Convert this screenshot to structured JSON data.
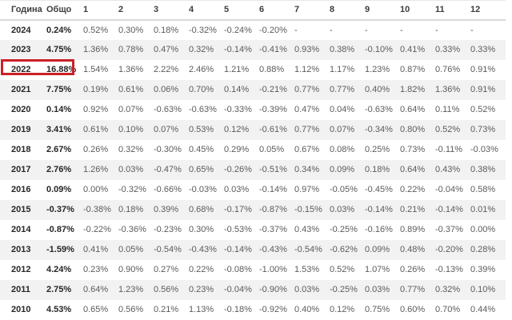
{
  "chart_data": {
    "type": "table",
    "title": "",
    "header": {
      "year_label": "Година",
      "total_label": "Общо",
      "month_labels": [
        "1",
        "2",
        "3",
        "4",
        "5",
        "6",
        "7",
        "8",
        "9",
        "10",
        "11",
        "12"
      ]
    },
    "rows": [
      {
        "year": "2024",
        "total": "0.24%",
        "months": [
          "0.52%",
          "0.30%",
          "0.18%",
          "-0.32%",
          "-0.24%",
          "-0.20%",
          "-",
          "-",
          "-",
          "-",
          "-",
          "-"
        ]
      },
      {
        "year": "2023",
        "total": "4.75%",
        "months": [
          "1.36%",
          "0.78%",
          "0.47%",
          "0.32%",
          "-0.14%",
          "-0.41%",
          "0.93%",
          "0.38%",
          "-0.10%",
          "0.41%",
          "0.33%",
          "0.33%"
        ]
      },
      {
        "year": "2022",
        "total": "16.88%",
        "months": [
          "1.54%",
          "1.36%",
          "2.22%",
          "2.46%",
          "1.21%",
          "0.88%",
          "1.12%",
          "1.17%",
          "1.23%",
          "0.87%",
          "0.76%",
          "0.91%"
        ]
      },
      {
        "year": "2021",
        "total": "7.75%",
        "months": [
          "0.19%",
          "0.61%",
          "0.06%",
          "0.70%",
          "0.14%",
          "-0.21%",
          "0.77%",
          "0.77%",
          "0.40%",
          "1.82%",
          "1.36%",
          "0.91%"
        ]
      },
      {
        "year": "2020",
        "total": "0.14%",
        "months": [
          "0.92%",
          "0.07%",
          "-0.63%",
          "-0.63%",
          "-0.33%",
          "-0.39%",
          "0.47%",
          "0.04%",
          "-0.63%",
          "0.64%",
          "0.11%",
          "0.52%"
        ]
      },
      {
        "year": "2019",
        "total": "3.41%",
        "months": [
          "0.61%",
          "0.10%",
          "0.07%",
          "0.53%",
          "0.12%",
          "-0.61%",
          "0.77%",
          "0.07%",
          "-0.34%",
          "0.80%",
          "0.52%",
          "0.73%"
        ]
      },
      {
        "year": "2018",
        "total": "2.67%",
        "months": [
          "0.26%",
          "0.32%",
          "-0.30%",
          "0.45%",
          "0.29%",
          "0.05%",
          "0.67%",
          "0.08%",
          "0.25%",
          "0.73%",
          "-0.11%",
          "-0.03%"
        ]
      },
      {
        "year": "2017",
        "total": "2.76%",
        "months": [
          "1.26%",
          "0.03%",
          "-0.47%",
          "0.65%",
          "-0.26%",
          "-0.51%",
          "0.34%",
          "0.09%",
          "0.18%",
          "0.64%",
          "0.43%",
          "0.38%"
        ]
      },
      {
        "year": "2016",
        "total": "0.09%",
        "months": [
          "0.00%",
          "-0.32%",
          "-0.66%",
          "-0.03%",
          "0.03%",
          "-0.14%",
          "0.97%",
          "-0.05%",
          "-0.45%",
          "0.22%",
          "-0.04%",
          "0.58%"
        ]
      },
      {
        "year": "2015",
        "total": "-0.37%",
        "months": [
          "-0.38%",
          "0.18%",
          "0.39%",
          "0.68%",
          "-0.17%",
          "-0.87%",
          "-0.15%",
          "0.03%",
          "-0.14%",
          "0.21%",
          "-0.14%",
          "0.01%"
        ]
      },
      {
        "year": "2014",
        "total": "-0.87%",
        "months": [
          "-0.22%",
          "-0.36%",
          "-0.23%",
          "0.30%",
          "-0.53%",
          "-0.37%",
          "0.43%",
          "-0.25%",
          "-0.16%",
          "0.89%",
          "-0.37%",
          "0.00%"
        ]
      },
      {
        "year": "2013",
        "total": "-1.59%",
        "months": [
          "0.41%",
          "0.05%",
          "-0.54%",
          "-0.43%",
          "-0.14%",
          "-0.43%",
          "-0.54%",
          "-0.62%",
          "0.09%",
          "0.48%",
          "-0.20%",
          "0.28%"
        ]
      },
      {
        "year": "2012",
        "total": "4.24%",
        "months": [
          "0.23%",
          "0.90%",
          "0.27%",
          "0.22%",
          "-0.08%",
          "-1.00%",
          "1.53%",
          "0.52%",
          "1.07%",
          "0.26%",
          "-0.13%",
          "0.39%"
        ]
      },
      {
        "year": "2011",
        "total": "2.75%",
        "months": [
          "0.64%",
          "1.23%",
          "0.56%",
          "0.23%",
          "-0.04%",
          "-0.90%",
          "0.03%",
          "-0.25%",
          "0.03%",
          "0.77%",
          "0.32%",
          "0.10%"
        ]
      },
      {
        "year": "2010",
        "total": "4.53%",
        "months": [
          "0.65%",
          "0.56%",
          "0.21%",
          "1.13%",
          "-0.18%",
          "-0.92%",
          "0.40%",
          "0.12%",
          "0.75%",
          "0.60%",
          "0.70%",
          "0.44%"
        ]
      }
    ],
    "highlighted_cell": {
      "row": "2022",
      "column": "Общо",
      "value": "16.88%"
    },
    "colors": {
      "stripe": "#f2f2f2",
      "highlight_border": "#cb2126",
      "strong_text": "#262626",
      "value_text": "#5b5b5b"
    }
  }
}
